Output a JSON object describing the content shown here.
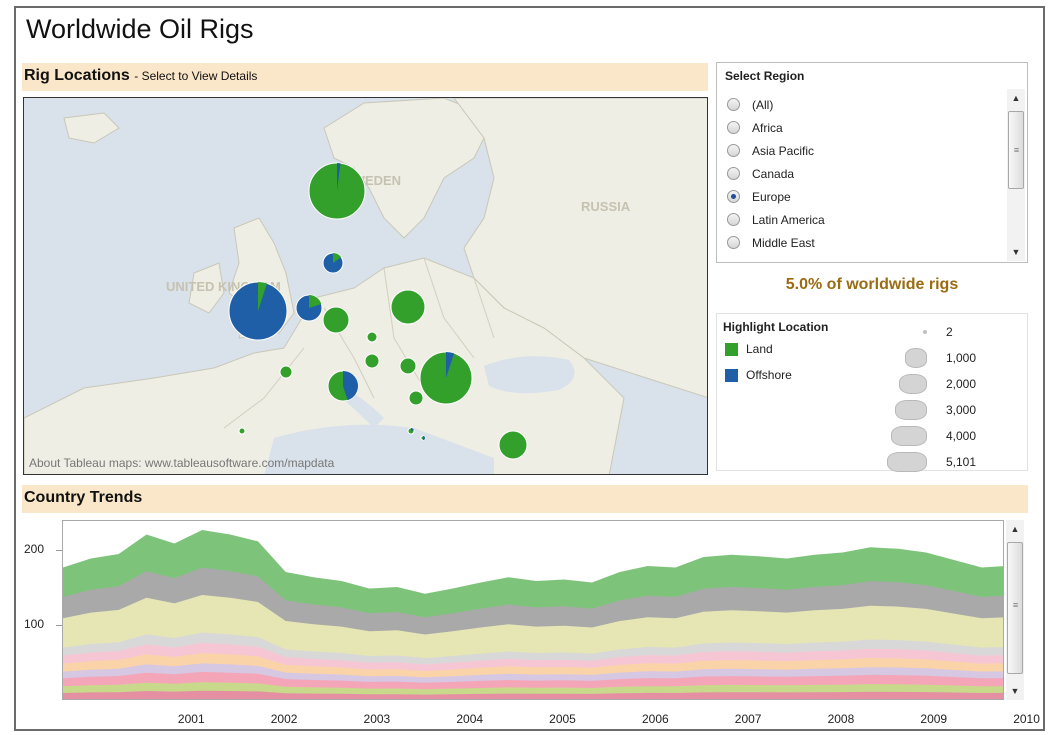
{
  "title": "Worldwide Oil Rigs",
  "map_section": {
    "title": "Rig Locations",
    "subtitle": "- Select to View Details",
    "country_labels": [
      "SWEDEN",
      "RUSSIA",
      "UNITED KINGDOM"
    ],
    "credit": "About Tableau maps: www.tableausoftware.com/mapdata"
  },
  "region_filter": {
    "title": "Select Region",
    "options": [
      {
        "label": "(All)",
        "selected": false
      },
      {
        "label": "Africa",
        "selected": false
      },
      {
        "label": "Asia Pacific",
        "selected": false
      },
      {
        "label": "Canada",
        "selected": false
      },
      {
        "label": "Europe",
        "selected": true
      },
      {
        "label": "Latin America",
        "selected": false
      },
      {
        "label": "Middle East",
        "selected": false
      }
    ]
  },
  "summary": "5.0% of worldwide rigs",
  "legend": {
    "title": "Highlight Location",
    "items": [
      {
        "label": "Land",
        "color": "#33a02c"
      },
      {
        "label": "Offshore",
        "color": "#1f5fa8"
      }
    ],
    "sizes": [
      "2",
      "1,000",
      "2,000",
      "3,000",
      "4,000",
      "5,101"
    ]
  },
  "trends_section": {
    "title": "Country Trends"
  },
  "chart_data": {
    "type": "area",
    "stacked": true,
    "x_ticks": [
      "2001",
      "2002",
      "2003",
      "2004",
      "2005",
      "2006",
      "2007",
      "2008",
      "2009",
      "2010"
    ],
    "y_ticks": [
      100,
      200
    ],
    "ylim": [
      0,
      240
    ],
    "xlim": [
      2000.1,
      2010.25
    ],
    "x": [
      2000.1,
      2000.4,
      2000.7,
      2001.0,
      2001.3,
      2001.6,
      2001.9,
      2002.2,
      2002.5,
      2002.8,
      2003.1,
      2003.4,
      2003.7,
      2004.0,
      2004.3,
      2004.6,
      2004.9,
      2005.2,
      2005.5,
      2005.8,
      2006.1,
      2006.4,
      2006.7,
      2007.0,
      2007.3,
      2007.6,
      2007.9,
      2008.2,
      2008.5,
      2008.8,
      2009.1,
      2009.4,
      2009.7,
      2010.0,
      2010.25
    ],
    "totals": [
      178,
      190,
      196,
      222,
      210,
      228,
      222,
      213,
      172,
      165,
      160,
      150,
      152,
      143,
      150,
      158,
      165,
      160,
      162,
      158,
      172,
      180,
      178,
      192,
      195,
      193,
      190,
      195,
      198,
      205,
      203,
      198,
      188,
      178,
      180
    ],
    "series_colors": [
      "#7dc47a",
      "#a9a9a9",
      "#e6e6b4",
      "#d8d8d8",
      "#f7c6d4",
      "#fbd3a8",
      "#d6c7e3",
      "#f4a6b8",
      "#c9d98c",
      "#e58fa3"
    ],
    "series_shares": [
      0.22,
      0.16,
      0.22,
      0.06,
      0.06,
      0.06,
      0.05,
      0.06,
      0.05,
      0.06
    ]
  }
}
